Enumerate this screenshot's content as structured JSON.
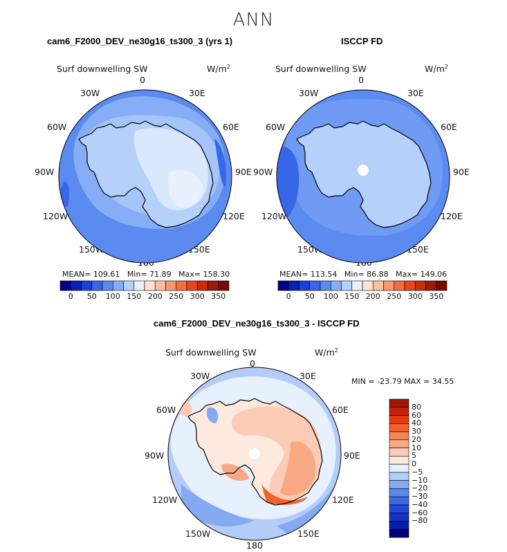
{
  "title": "ANN",
  "panels": [
    {
      "title": "cam6_F2000_DEV_ne30g16_ts300_3 (yrs 1)",
      "variable": "Surf downwelling SW",
      "units_base": "W/m",
      "units_exp": "2",
      "lon_labels": {
        "n": "0",
        "nne": "30E",
        "ne": "60E",
        "e": "90E",
        "se": "120E",
        "sse": "150E",
        "s": "180",
        "ssw": "150W",
        "sw": "120W",
        "w": "90W",
        "nw": "60W",
        "nnw": "30W"
      },
      "stats": {
        "mean_label": "MEAN=",
        "mean": "109.61",
        "min_label": "Min=",
        "min": "71.89",
        "max_label": "Max=",
        "max": "158.30"
      },
      "colorbar_ticks": [
        "0",
        "50",
        "100",
        "150",
        "200",
        "250",
        "300",
        "350"
      ]
    },
    {
      "title": "ISCCP FD",
      "variable": "Surf downwelling SW",
      "units_base": "W/m",
      "units_exp": "2",
      "lon_labels": {
        "n": "0",
        "nne": "30E",
        "ne": "60E",
        "e": "90E",
        "se": "120E",
        "sse": "150E",
        "s": "180",
        "ssw": "150W",
        "sw": "120W",
        "w": "90W",
        "nw": "60W",
        "nnw": "30W"
      },
      "stats": {
        "mean_label": "MEAN=",
        "mean": "113.54",
        "min_label": "Min=",
        "min": "86.88",
        "max_label": "Max=",
        "max": "149.06"
      },
      "colorbar_ticks": [
        "0",
        "50",
        "100",
        "150",
        "200",
        "250",
        "300",
        "350"
      ]
    },
    {
      "title": "cam6_F2000_DEV_ne30g16_ts300_3 - ISCCP FD",
      "variable": "Surf downwelling SW",
      "units_base": "W/m",
      "units_exp": "2",
      "lon_labels": {
        "n": "0",
        "nne": "30E",
        "ne": "60E",
        "e": "90E",
        "se": "120E",
        "sse": "150E",
        "s": "180",
        "ssw": "150W",
        "sw": "120W",
        "w": "90W",
        "nw": "60W",
        "nnw": "30W"
      },
      "stats_line": "MIN = -23.79 MAX =  34.55",
      "colorbar_ticks": [
        "80",
        "60",
        "40",
        "30",
        "20",
        "10",
        "5",
        "0",
        "−5",
        "−10",
        "−20",
        "−30",
        "−40",
        "−60",
        "−80"
      ]
    }
  ],
  "colors": {
    "abs_scale": [
      "#00008b",
      "#0a1fb4",
      "#1c3fd8",
      "#3866e8",
      "#5b8af0",
      "#86aef6",
      "#b4d0fb",
      "#e8f1fd",
      "#fde1d1",
      "#fbbe9f",
      "#f89770",
      "#f56d40",
      "#e94717",
      "#c82d0a",
      "#9e1a04",
      "#780a00"
    ],
    "diff_scale": [
      "#a01400",
      "#c52106",
      "#e23b10",
      "#f2632c",
      "#f58552",
      "#f9a884",
      "#fccbb5",
      "#fde9dd",
      "#e7f0fd",
      "#b4cdf8",
      "#86aaf2",
      "#5d88ec",
      "#3c68e4",
      "#2348d8",
      "#1230c4",
      "#081ea6",
      "#00007a"
    ]
  }
}
